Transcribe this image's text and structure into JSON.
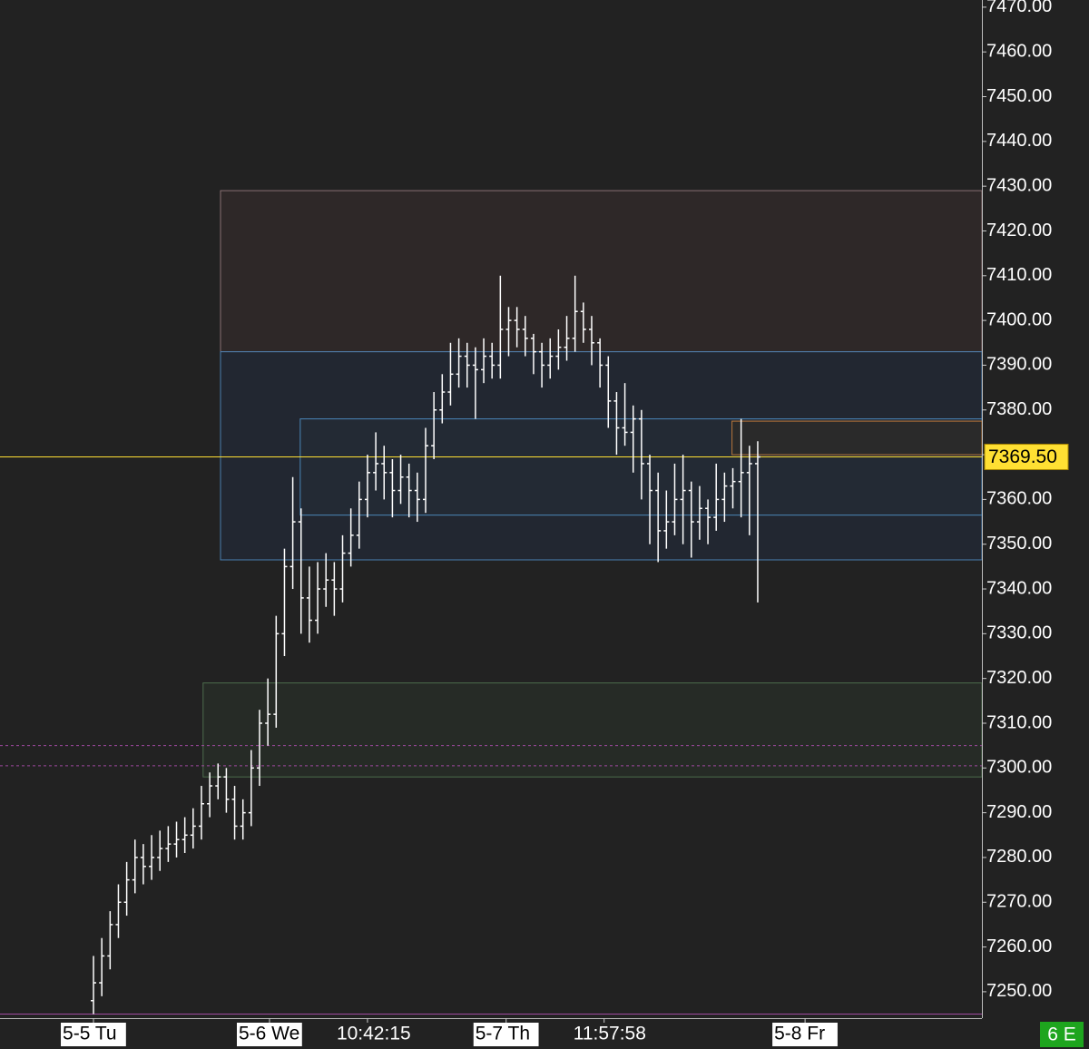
{
  "chart_data": {
    "type": "ohlc",
    "symbol": "6 E",
    "ohlc": [
      [
        7248,
        7258,
        7245,
        7252
      ],
      [
        7252,
        7262,
        7249,
        7258
      ],
      [
        7258,
        7268,
        7255,
        7265
      ],
      [
        7265,
        7274,
        7262,
        7270
      ],
      [
        7270,
        7279,
        7267,
        7275
      ],
      [
        7275,
        7284,
        7272,
        7280
      ],
      [
        7280,
        7283,
        7274,
        7278
      ],
      [
        7278,
        7285,
        7275,
        7280
      ],
      [
        7280,
        7286,
        7277,
        7282
      ],
      [
        7282,
        7287,
        7279,
        7283
      ],
      [
        7283,
        7288,
        7280,
        7284
      ],
      [
        7284,
        7289,
        7281,
        7285
      ],
      [
        7285,
        7291,
        7282,
        7287
      ],
      [
        7287,
        7296,
        7284,
        7292
      ],
      [
        7292,
        7299,
        7289,
        7296
      ],
      [
        7296,
        7301,
        7293,
        7298
      ],
      [
        7298,
        7300,
        7290,
        7293
      ],
      [
        7293,
        7296,
        7284,
        7287
      ],
      [
        7287,
        7293,
        7284,
        7290
      ],
      [
        7290,
        7304,
        7287,
        7300
      ],
      [
        7300,
        7313,
        7296,
        7310
      ],
      [
        7310,
        7320,
        7305,
        7312
      ],
      [
        7312,
        7334,
        7309,
        7330
      ],
      [
        7330,
        7349,
        7325,
        7345
      ],
      [
        7345,
        7365,
        7340,
        7355
      ],
      [
        7355,
        7358,
        7330,
        7338
      ],
      [
        7338,
        7345,
        7328,
        7333
      ],
      [
        7333,
        7346,
        7330,
        7340
      ],
      [
        7340,
        7348,
        7336,
        7342
      ],
      [
        7342,
        7346,
        7334,
        7340
      ],
      [
        7340,
        7352,
        7337,
        7348
      ],
      [
        7348,
        7358,
        7345,
        7352
      ],
      [
        7352,
        7364,
        7349,
        7360
      ],
      [
        7360,
        7370,
        7356,
        7366
      ],
      [
        7366,
        7375,
        7362,
        7368
      ],
      [
        7368,
        7372,
        7360,
        7366
      ],
      [
        7366,
        7369,
        7356,
        7362
      ],
      [
        7362,
        7370,
        7359,
        7365
      ],
      [
        7365,
        7368,
        7356,
        7362
      ],
      [
        7362,
        7366,
        7355,
        7360
      ],
      [
        7360,
        7376,
        7357,
        7372
      ],
      [
        7372,
        7384,
        7369,
        7380
      ],
      [
        7380,
        7388,
        7377,
        7384
      ],
      [
        7384,
        7395,
        7381,
        7388
      ],
      [
        7388,
        7396,
        7385,
        7392
      ],
      [
        7392,
        7395,
        7385,
        7390
      ],
      [
        7390,
        7394,
        7378,
        7389
      ],
      [
        7389,
        7396,
        7386,
        7392
      ],
      [
        7392,
        7395,
        7387,
        7390
      ],
      [
        7390,
        7410,
        7387,
        7398
      ],
      [
        7398,
        7403,
        7392,
        7400
      ],
      [
        7400,
        7403,
        7394,
        7398
      ],
      [
        7398,
        7401,
        7392,
        7396
      ],
      [
        7396,
        7397,
        7388,
        7393
      ],
      [
        7393,
        7395,
        7385,
        7390
      ],
      [
        7390,
        7396,
        7387,
        7392
      ],
      [
        7392,
        7398,
        7389,
        7394
      ],
      [
        7394,
        7401,
        7391,
        7396
      ],
      [
        7396,
        7410,
        7393,
        7402
      ],
      [
        7402,
        7404,
        7395,
        7398
      ],
      [
        7398,
        7401,
        7390,
        7395
      ],
      [
        7395,
        7396,
        7385,
        7390
      ],
      [
        7390,
        7392,
        7376,
        7382
      ],
      [
        7382,
        7384,
        7370,
        7376
      ],
      [
        7376,
        7386,
        7372,
        7375
      ],
      [
        7375,
        7381,
        7366,
        7378
      ],
      [
        7378,
        7380,
        7360,
        7368
      ],
      [
        7368,
        7370,
        7350,
        7362
      ],
      [
        7362,
        7366,
        7346,
        7353
      ],
      [
        7353,
        7362,
        7349,
        7355
      ],
      [
        7355,
        7368,
        7352,
        7360
      ],
      [
        7360,
        7370,
        7350,
        7362
      ],
      [
        7362,
        7364,
        7347,
        7355
      ],
      [
        7355,
        7363,
        7351,
        7358
      ],
      [
        7358,
        7360,
        7350,
        7356
      ],
      [
        7356,
        7368,
        7353,
        7360
      ],
      [
        7360,
        7366,
        7355,
        7363
      ],
      [
        7363,
        7367,
        7358,
        7364
      ],
      [
        7364,
        7378,
        7356,
        7366
      ],
      [
        7366,
        7372,
        7352,
        7368
      ],
      [
        7368,
        7373,
        7337,
        7369.5
      ]
    ],
    "bar_color": "#ffffff",
    "xlim": [
      -11.26,
      107.0
    ],
    "xticks": [
      {
        "value": 0,
        "label": "5-5 Tu",
        "boxed": true
      },
      {
        "value": 21.2,
        "label": "5-6 We",
        "boxed": true
      },
      {
        "value": 33,
        "label": "10:42:15",
        "boxed": false
      },
      {
        "value": 49.7,
        "label": "5-7 Th",
        "boxed": true
      },
      {
        "value": 61.5,
        "label": "11:57:58",
        "boxed": false
      },
      {
        "value": 85.7,
        "label": "5-8 Fr",
        "boxed": true
      }
    ],
    "ylim": [
      7244.1,
      7471.6
    ],
    "yticks": [
      {
        "value": 7250,
        "label": "7250.00"
      },
      {
        "value": 7260,
        "label": "7260.00"
      },
      {
        "value": 7270,
        "label": "7270.00"
      },
      {
        "value": 7280,
        "label": "7280.00"
      },
      {
        "value": 7290,
        "label": "7290.00"
      },
      {
        "value": 7300,
        "label": "7300.00"
      },
      {
        "value": 7310,
        "label": "7310.00"
      },
      {
        "value": 7320,
        "label": "7320.00"
      },
      {
        "value": 7330,
        "label": "7330.00"
      },
      {
        "value": 7340,
        "label": "7340.00"
      },
      {
        "value": 7350,
        "label": "7350.00"
      },
      {
        "value": 7360,
        "label": "7360.00"
      },
      {
        "value": 7370,
        "label": "7370.00"
      },
      {
        "value": 7380,
        "label": "7380.00"
      },
      {
        "value": 7390,
        "label": "7390.00"
      },
      {
        "value": 7400,
        "label": "7400.00"
      },
      {
        "value": 7410,
        "label": "7410.00"
      },
      {
        "value": 7420,
        "label": "7420.00"
      },
      {
        "value": 7430,
        "label": "7430.00"
      },
      {
        "value": 7440,
        "label": "7440.00"
      },
      {
        "value": 7450,
        "label": "7450.00"
      },
      {
        "value": 7460,
        "label": "7460.00"
      },
      {
        "value": 7470,
        "label": "7470.00"
      }
    ],
    "zones": [
      {
        "low": 7393,
        "high": 7429,
        "start": 15.3,
        "fill": "#2e2828",
        "stroke": "#8a6f72"
      },
      {
        "low": 7346.5,
        "high": 7393,
        "start": 15.3,
        "fill": "#222731",
        "stroke": "#4a7fb0"
      },
      {
        "low": 7356.5,
        "high": 7378,
        "start": 24.9,
        "fill": "#232a34",
        "stroke": "#4a86b8"
      },
      {
        "low": 7370,
        "high": 7377.5,
        "start": 76.9,
        "fill": "#2a2a2a",
        "stroke": "#b8763a"
      },
      {
        "low": 7298,
        "high": 7319,
        "start": 13.2,
        "fill": "#262b26",
        "stroke": "#4d6d4d"
      }
    ],
    "levels": [
      {
        "value": 7305,
        "color": "#a04aa0",
        "dashed": true
      },
      {
        "value": 7300.5,
        "color": "#a04aa0",
        "dashed": true
      },
      {
        "value": 7245,
        "color": "#a04aa0",
        "dashed": false
      }
    ],
    "last_price": {
      "value": 7369.5,
      "label": "7369.50",
      "color": "#ffe033"
    }
  }
}
